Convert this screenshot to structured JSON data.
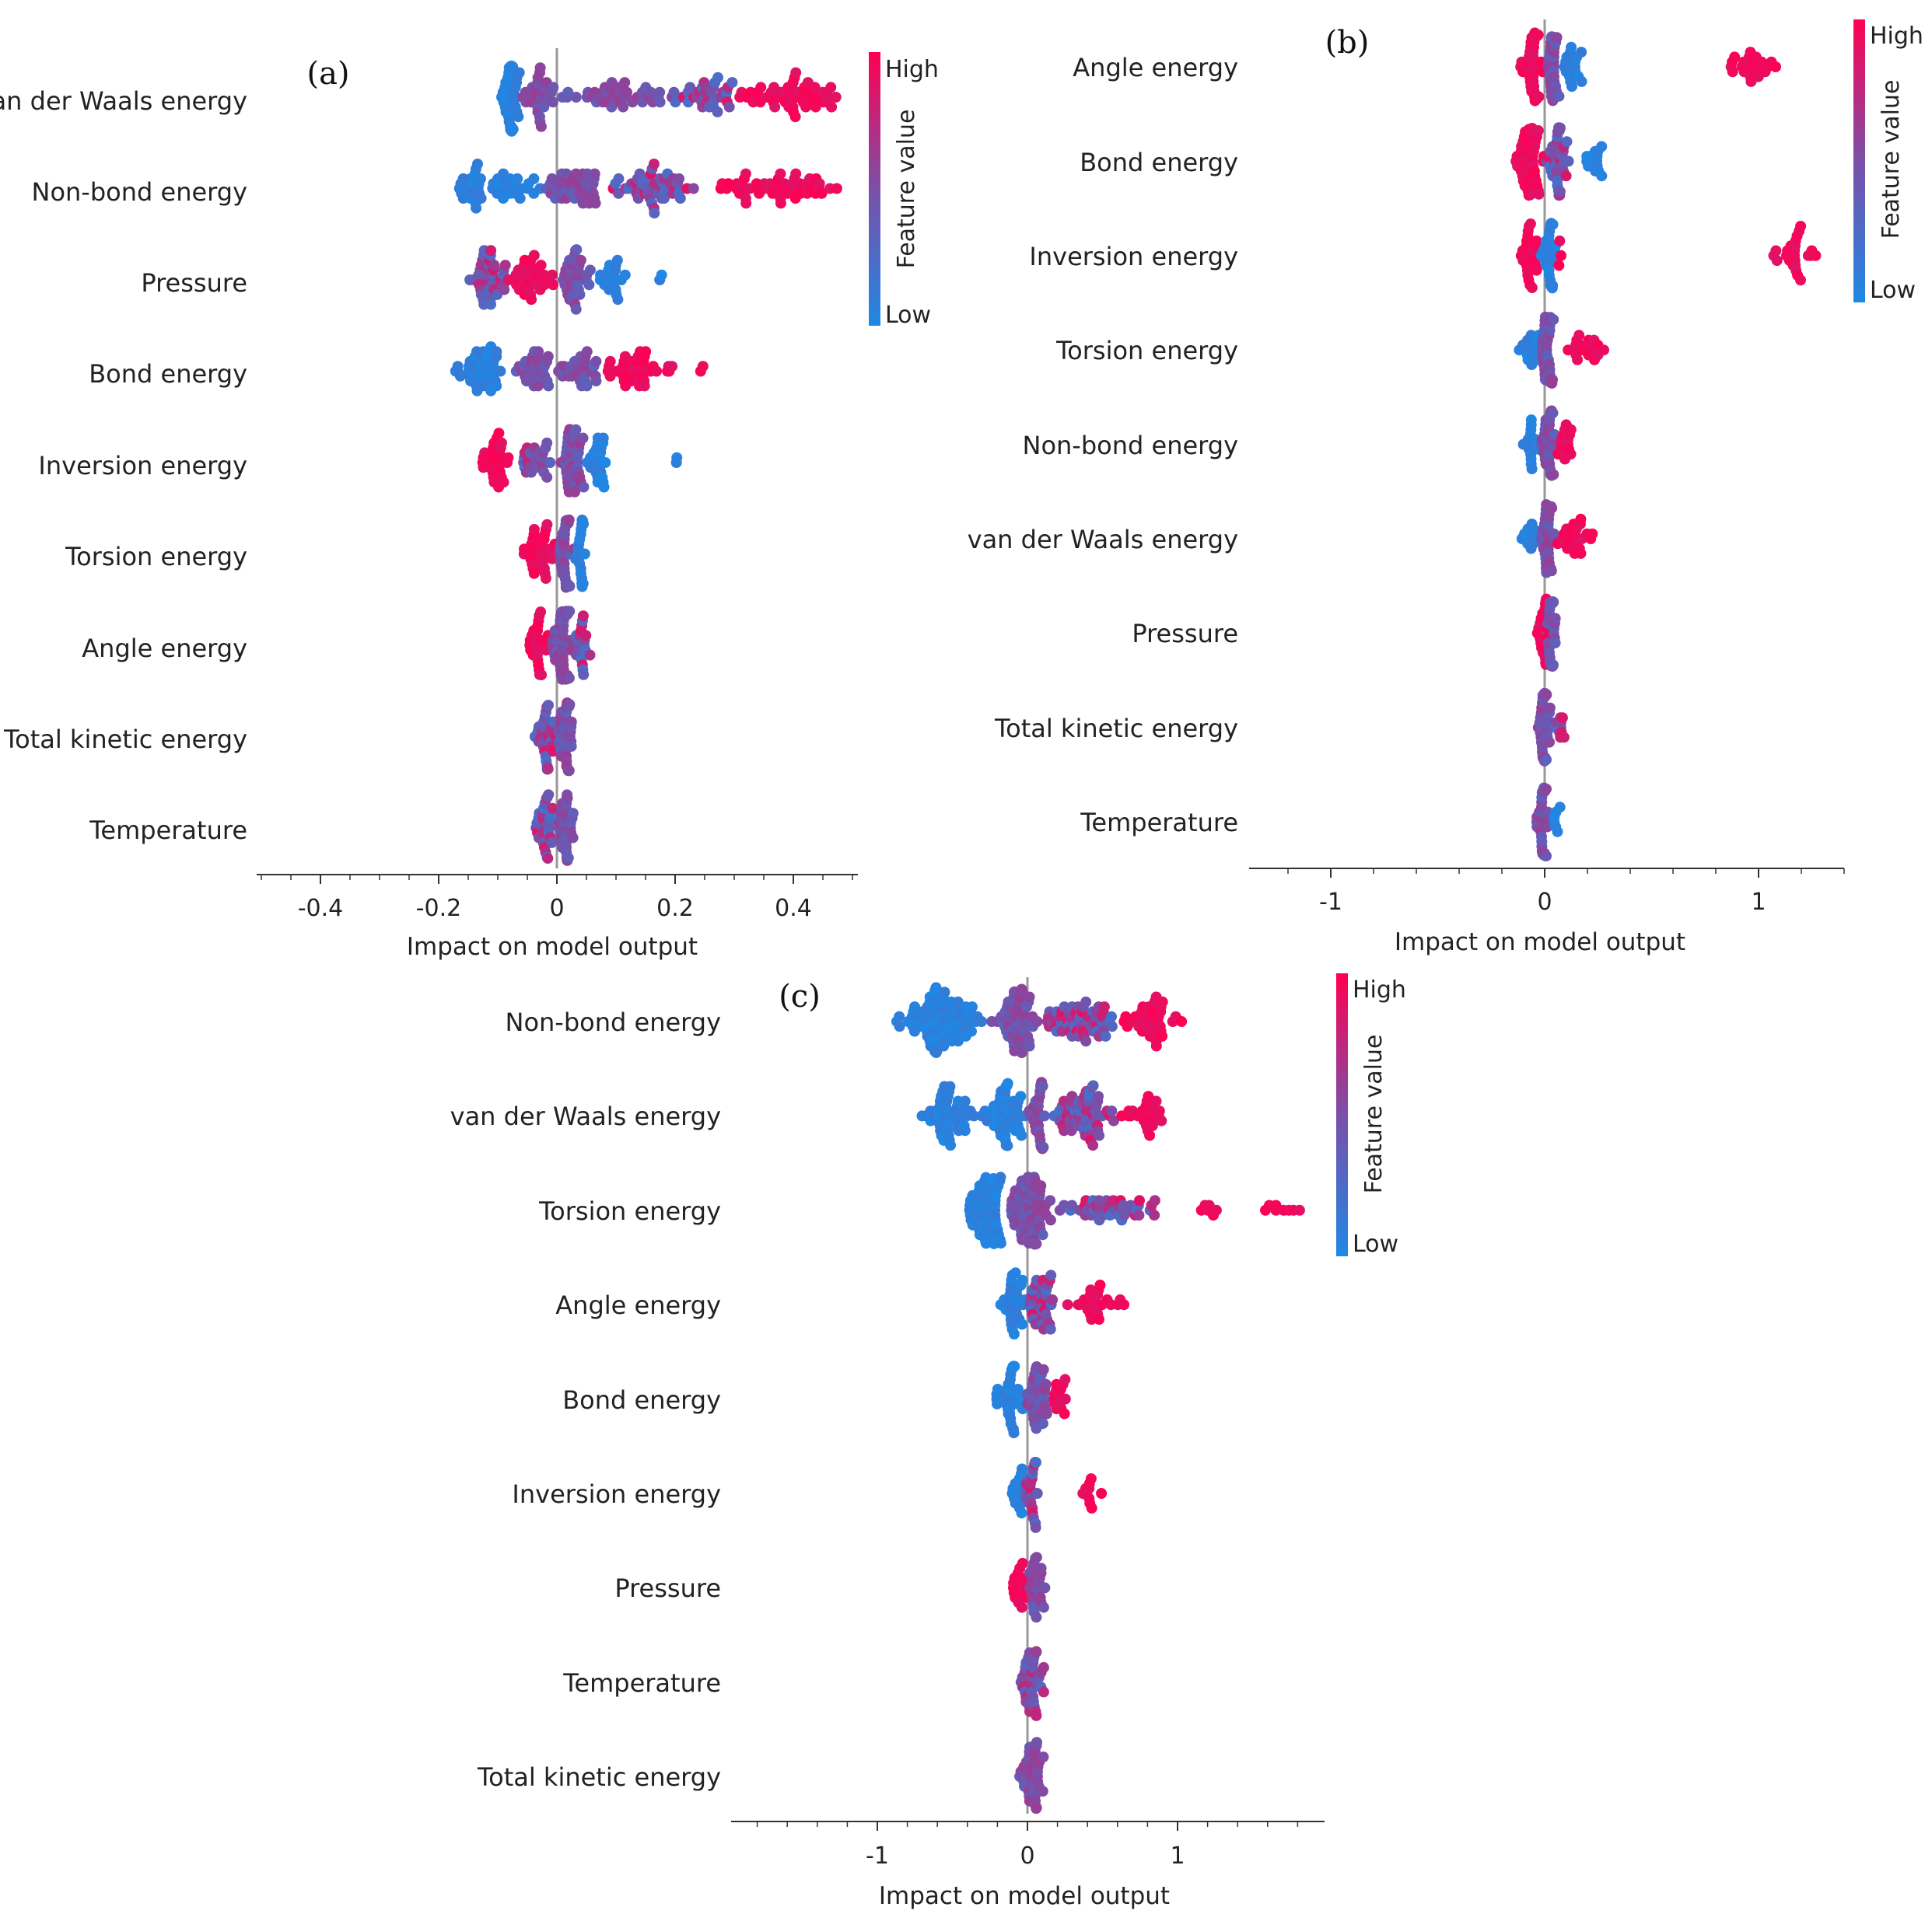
{
  "colors": {
    "low": "#1e88e5",
    "mid": "#7b4fa8",
    "high": "#ff0052",
    "zero_line": "#999999",
    "axis": "#333333"
  },
  "chart_data": [
    {
      "type": "scatter",
      "subtype": "shap-beeswarm",
      "panel": "(a)",
      "xlabel": "Impact on model output",
      "xlim": [
        -0.51,
        0.51
      ],
      "xticks": [
        -0.4,
        -0.2,
        0,
        0.2,
        0.4
      ],
      "xtick_labels": [
        "-0.4",
        "-0.2",
        "0",
        "0.2",
        "0.4"
      ],
      "minor_step": 0.05,
      "colorbar": {
        "title": "Feature value",
        "high": "High",
        "low": "Low"
      },
      "features": [
        {
          "name": "van der Waals energy",
          "clusters": [
            [
              -0.1,
              -0.06,
              "low",
              40
            ],
            [
              -0.06,
              0.0,
              "mid",
              30
            ],
            [
              0.0,
              0.2,
              "mid",
              45
            ],
            [
              0.2,
              0.3,
              "mix",
              35
            ],
            [
              0.3,
              0.49,
              "high",
              55
            ]
          ]
        },
        {
          "name": "Non-bond energy",
          "clusters": [
            [
              -0.17,
              -0.12,
              "low",
              25
            ],
            [
              -0.12,
              -0.02,
              "low",
              25
            ],
            [
              -0.02,
              0.08,
              "mid",
              45
            ],
            [
              0.08,
              0.25,
              "mix",
              50
            ],
            [
              0.25,
              0.49,
              "high",
              55
            ]
          ]
        },
        {
          "name": "Pressure",
          "clusters": [
            [
              -0.15,
              -0.08,
              "mix",
              40
            ],
            [
              -0.08,
              0.0,
              "high",
              35
            ],
            [
              0.0,
              0.06,
              "mid",
              35
            ],
            [
              0.06,
              0.12,
              "low",
              20
            ],
            [
              0.17,
              0.18,
              "low",
              2
            ]
          ]
        },
        {
          "name": "Bond energy",
          "clusters": [
            [
              -0.18,
              -0.08,
              "low",
              45
            ],
            [
              -0.08,
              0.0,
              "mid",
              30
            ],
            [
              0.0,
              0.08,
              "mid",
              30
            ],
            [
              0.08,
              0.2,
              "high",
              40
            ],
            [
              0.24,
              0.25,
              "high",
              2
            ]
          ]
        },
        {
          "name": "Inversion energy",
          "clusters": [
            [
              -0.14,
              -0.08,
              "high",
              30
            ],
            [
              -0.08,
              0.0,
              "mix",
              25
            ],
            [
              0.0,
              0.05,
              "mid",
              40
            ],
            [
              0.05,
              0.09,
              "low",
              25
            ],
            [
              0.2,
              0.21,
              "low",
              2
            ]
          ]
        },
        {
          "name": "Torsion energy",
          "clusters": [
            [
              -0.06,
              0.0,
              "high",
              35
            ],
            [
              0.0,
              0.03,
              "mid",
              40
            ],
            [
              0.03,
              0.05,
              "low",
              20
            ]
          ]
        },
        {
          "name": "Angle energy",
          "clusters": [
            [
              -0.05,
              -0.01,
              "high",
              25
            ],
            [
              -0.01,
              0.03,
              "mid",
              60
            ],
            [
              0.03,
              0.06,
              "mix",
              20
            ]
          ]
        },
        {
          "name": "Total kinetic energy",
          "clusters": [
            [
              -0.04,
              0.0,
              "mix",
              30
            ],
            [
              0.0,
              0.03,
              "mid",
              35
            ]
          ]
        },
        {
          "name": "Temperature",
          "clusters": [
            [
              -0.04,
              0.0,
              "mix",
              30
            ],
            [
              0.0,
              0.03,
              "mid",
              35
            ]
          ]
        }
      ]
    },
    {
      "type": "scatter",
      "subtype": "shap-beeswarm",
      "panel": "(b)",
      "xlabel": "Impact on model output",
      "xlim": [
        -1.4,
        1.4
      ],
      "xticks": [
        -1,
        0,
        1
      ],
      "xtick_labels": [
        "-1",
        "0",
        "1"
      ],
      "minor_step": 0.2,
      "colorbar": {
        "title": "Feature value",
        "high": "High",
        "low": "Low"
      },
      "features": [
        {
          "name": "Angle energy",
          "clusters": [
            [
              -0.12,
              0.0,
              "high",
              45
            ],
            [
              0.0,
              0.08,
              "mid",
              30
            ],
            [
              0.08,
              0.2,
              "low",
              20
            ],
            [
              0.85,
              1.1,
              "high",
              25
            ]
          ]
        },
        {
          "name": "Bond energy",
          "clusters": [
            [
              -0.15,
              0.0,
              "high",
              60
            ],
            [
              0.0,
              0.12,
              "mix",
              35
            ],
            [
              0.17,
              0.3,
              "low",
              15
            ]
          ]
        },
        {
          "name": "Inversion energy",
          "clusters": [
            [
              -0.12,
              -0.02,
              "high",
              25
            ],
            [
              -0.02,
              0.06,
              "low",
              30
            ],
            [
              0.06,
              0.08,
              "high",
              3
            ],
            [
              1.05,
              1.32,
              "high",
              25
            ]
          ]
        },
        {
          "name": "Torsion energy",
          "clusters": [
            [
              -0.12,
              -0.02,
              "low",
              15
            ],
            [
              -0.02,
              0.05,
              "mid",
              35
            ],
            [
              0.1,
              0.3,
              "high",
              20
            ]
          ]
        },
        {
          "name": "Non-bond energy",
          "clusters": [
            [
              -0.12,
              -0.02,
              "low",
              15
            ],
            [
              -0.02,
              0.05,
              "mid",
              35
            ],
            [
              0.05,
              0.14,
              "high",
              15
            ]
          ]
        },
        {
          "name": "van der Waals energy",
          "clusters": [
            [
              -0.12,
              -0.02,
              "low",
              12
            ],
            [
              -0.02,
              0.05,
              "mid",
              35
            ],
            [
              0.05,
              0.25,
              "high",
              25
            ]
          ]
        },
        {
          "name": "Pressure",
          "clusters": [
            [
              -0.04,
              0.02,
              "high",
              20
            ],
            [
              0.0,
              0.06,
              "mid",
              30
            ]
          ]
        },
        {
          "name": "Total kinetic energy",
          "clusters": [
            [
              -0.04,
              0.03,
              "mid",
              35
            ],
            [
              0.03,
              0.12,
              "mix",
              10
            ]
          ]
        },
        {
          "name": "Temperature",
          "clusters": [
            [
              -0.05,
              0.03,
              "mid",
              35
            ],
            [
              0.03,
              0.08,
              "low",
              6
            ]
          ]
        }
      ]
    },
    {
      "type": "scatter",
      "subtype": "shap-beeswarm",
      "panel": "(c)",
      "xlabel": "Impact on model output",
      "xlim": [
        -1.97,
        1.97
      ],
      "xticks": [
        -1,
        0,
        1
      ],
      "xtick_labels": [
        "-1",
        "0",
        "1"
      ],
      "minor_step": 0.2,
      "colorbar": {
        "title": "Feature value",
        "high": "High",
        "low": "Low"
      },
      "features": [
        {
          "name": "Non-bond energy",
          "clusters": [
            [
              -0.88,
              -0.25,
              "low",
              90
            ],
            [
              -0.25,
              0.1,
              "mid",
              60
            ],
            [
              0.1,
              0.6,
              "mix",
              60
            ],
            [
              0.6,
              1.07,
              "high",
              40
            ]
          ]
        },
        {
          "name": "van der Waals energy",
          "clusters": [
            [
              -0.72,
              -0.3,
              "low",
              50
            ],
            [
              -0.3,
              0.0,
              "low",
              50
            ],
            [
              0.0,
              0.15,
              "mid",
              30
            ],
            [
              0.15,
              0.6,
              "mix",
              60
            ],
            [
              0.6,
              0.92,
              "high",
              25
            ]
          ]
        },
        {
          "name": "Torsion energy",
          "clusters": [
            [
              -0.4,
              -0.15,
              "low",
              70
            ],
            [
              -0.15,
              0.2,
              "mid",
              80
            ],
            [
              0.2,
              0.9,
              "mix",
              45
            ],
            [
              1.1,
              1.3,
              "high",
              6
            ],
            [
              1.55,
              1.9,
              "high",
              8
            ]
          ]
        },
        {
          "name": "Angle energy",
          "clusters": [
            [
              -0.2,
              0.0,
              "low",
              30
            ],
            [
              0.0,
              0.2,
              "mix",
              35
            ],
            [
              0.2,
              0.7,
              "high",
              25
            ]
          ]
        },
        {
          "name": "Bond energy",
          "clusters": [
            [
              -0.22,
              -0.02,
              "low",
              35
            ],
            [
              -0.02,
              0.15,
              "mid",
              35
            ],
            [
              0.15,
              0.28,
              "high",
              15
            ]
          ]
        },
        {
          "name": "Inversion energy",
          "clusters": [
            [
              -0.12,
              -0.02,
              "low",
              15
            ],
            [
              -0.02,
              0.08,
              "mix",
              25
            ],
            [
              0.33,
              0.5,
              "high",
              10
            ]
          ]
        },
        {
          "name": "Pressure",
          "clusters": [
            [
              -0.12,
              0.0,
              "high",
              20
            ],
            [
              0.0,
              0.12,
              "mid",
              25
            ]
          ]
        },
        {
          "name": "Temperature",
          "clusters": [
            [
              -0.06,
              0.12,
              "mix",
              40
            ]
          ]
        },
        {
          "name": "Total kinetic energy",
          "clusters": [
            [
              -0.06,
              0.12,
              "mid",
              40
            ]
          ]
        }
      ]
    }
  ]
}
